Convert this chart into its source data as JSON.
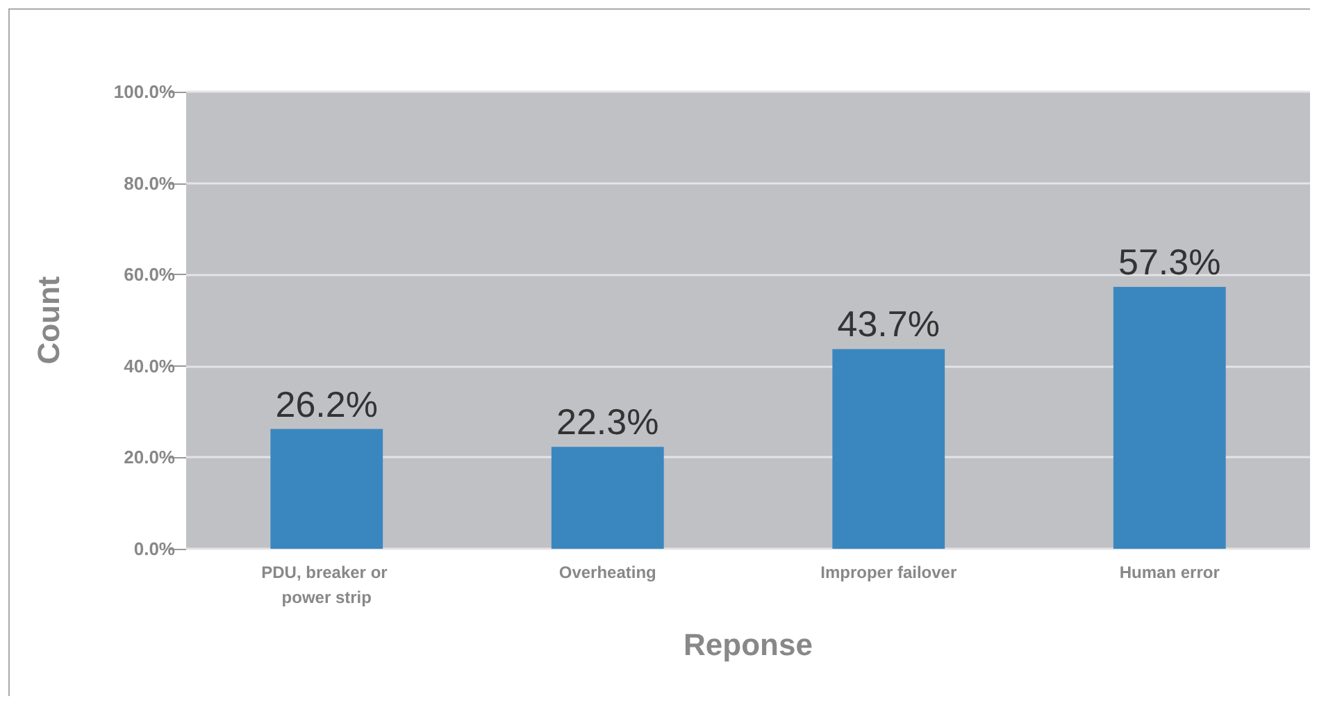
{
  "chart_data": {
    "type": "bar",
    "xlabel": "Reponse",
    "ylabel": "Count",
    "categories": [
      "PDU, breaker or power strip",
      "Overheating",
      "Improper failover",
      "Human error"
    ],
    "values": [
      26.2,
      22.3,
      43.7,
      57.3
    ],
    "value_labels": [
      "26.2%",
      "22.3%",
      "43.7%",
      "57.3%"
    ],
    "color": "#3a87c0",
    "ylim": [
      0,
      100
    ],
    "yticks": [
      {
        "value": 0,
        "label": "0.0%"
      },
      {
        "value": 20,
        "label": "20.0%"
      },
      {
        "value": 40,
        "label": "40.0%"
      },
      {
        "value": 60,
        "label": "60.0%"
      },
      {
        "value": 80,
        "label": "80.0%"
      },
      {
        "value": 100,
        "label": "100.0%"
      }
    ],
    "grid": "y"
  }
}
